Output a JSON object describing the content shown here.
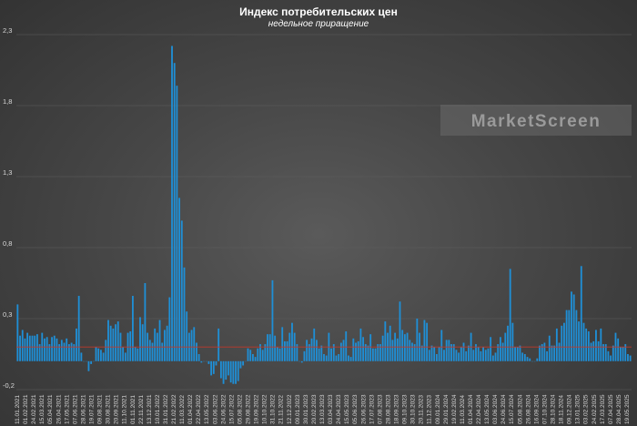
{
  "chart_data": {
    "type": "bar",
    "title": "Индекс потребительских цен",
    "subtitle": "недельное приращение",
    "watermark": "MarketScreen",
    "ylim": [
      -0.2,
      2.3
    ],
    "yticks": [
      "-0,2",
      "0,3",
      "0,8",
      "1,3",
      "1,8",
      "2,3"
    ],
    "ytick_values": [
      -0.2,
      0.3,
      0.8,
      1.3,
      1.8,
      2.3
    ],
    "grid": true,
    "bar_color": "#1f8fd6",
    "average_line": {
      "value": 0.1,
      "color": "#c0392b"
    },
    "xtick_labels": [
      "11.01.2021",
      "01.02.2021",
      "24.02.2021",
      "15.03.2021",
      "05.04.2021",
      "26.04.2021",
      "17.05.2021",
      "07.06.2021",
      "28.06.2021",
      "19.07.2021",
      "09.08.2021",
      "30.08.2021",
      "20.09.2021",
      "11.10.2021",
      "01.11.2021",
      "22.11.2021",
      "13.12.2021",
      "10.01.2022",
      "31.01.2022",
      "21.02.2022",
      "11.03.2022",
      "01.04.2022",
      "22.04.2022",
      "13.05.2022",
      "03.06.2022",
      "24.06.2022",
      "15.07.2022",
      "05.08.2022",
      "29.08.2022",
      "19.09.2022",
      "10.10.2022",
      "31.10.2022",
      "21.11.2022",
      "12.12.2022",
      "09.01.2023",
      "30.01.2023",
      "20.02.2023",
      "13.03.2023",
      "03.04.2023",
      "24.04.2023",
      "15.05.2023",
      "05.06.2023",
      "26.06.2023",
      "17.07.2023",
      "07.08.2023",
      "28.08.2023",
      "18.09.2023",
      "09.10.2023",
      "30.10.2023",
      "20.11.2023",
      "11.12.2023",
      "09.01.2024",
      "29.01.2024",
      "19.02.2024",
      "11.03.2024",
      "01.04.2024",
      "22.04.2024",
      "13.05.2024",
      "03.06.2024",
      "24.06.2024",
      "15.07.2024",
      "05.08.2024",
      "26.08.2024",
      "16.09.2024",
      "07.10.2024",
      "28.10.2024",
      "18.11.2024",
      "09.12.2024",
      "13.01.2025",
      "03.02.2025",
      "24.02.2025",
      "17.03.2025",
      "07.04.2025",
      "28.04.2025",
      "19.05.2025"
    ],
    "values": [
      0.4,
      0.18,
      0.22,
      0.16,
      0.2,
      0.18,
      0.18,
      0.18,
      0.19,
      0.12,
      0.2,
      0.16,
      0.17,
      0.12,
      0.17,
      0.18,
      0.16,
      0.12,
      0.15,
      0.13,
      0.16,
      0.12,
      0.13,
      0.12,
      0.23,
      0.46,
      0.06,
      0.0,
      0.0,
      -0.07,
      -0.02,
      0.0,
      0.1,
      0.09,
      0.08,
      0.06,
      0.15,
      0.29,
      0.25,
      0.23,
      0.26,
      0.28,
      0.2,
      0.1,
      0.06,
      0.2,
      0.21,
      0.46,
      0.1,
      0.09,
      0.31,
      0.26,
      0.55,
      0.2,
      0.15,
      0.13,
      0.23,
      0.2,
      0.29,
      0.13,
      0.22,
      0.25,
      0.45,
      2.22,
      2.1,
      1.94,
      1.15,
      0.99,
      0.66,
      0.35,
      0.2,
      0.22,
      0.24,
      0.13,
      0.05,
      -0.01,
      0.0,
      0.0,
      -0.02,
      -0.1,
      -0.09,
      -0.03,
      0.23,
      -0.12,
      -0.16,
      -0.13,
      -0.1,
      -0.15,
      -0.16,
      -0.16,
      -0.14,
      -0.05,
      -0.03,
      0.0,
      0.09,
      0.08,
      0.05,
      0.03,
      0.09,
      0.12,
      0.08,
      0.12,
      0.19,
      0.19,
      0.57,
      0.18,
      0.1,
      0.09,
      0.24,
      0.14,
      0.14,
      0.2,
      0.27,
      0.2,
      0.12,
      0.0,
      -0.01,
      0.07,
      0.15,
      0.12,
      0.16,
      0.23,
      0.15,
      0.09,
      0.11,
      0.05,
      0.04,
      0.2,
      0.09,
      0.12,
      0.04,
      0.05,
      0.13,
      0.15,
      0.21,
      0.04,
      0.03,
      0.16,
      0.13,
      0.14,
      0.23,
      0.17,
      0.12,
      0.11,
      0.19,
      0.09,
      0.09,
      0.12,
      0.12,
      0.18,
      0.28,
      0.2,
      0.25,
      0.15,
      0.2,
      0.16,
      0.42,
      0.22,
      0.19,
      0.2,
      0.15,
      0.13,
      0.12,
      0.3,
      0.2,
      0.11,
      0.29,
      0.27,
      0.08,
      0.11,
      0.1,
      0.05,
      0.1,
      0.22,
      0.08,
      0.15,
      0.15,
      0.12,
      0.12,
      0.08,
      0.06,
      0.1,
      0.13,
      0.07,
      0.11,
      0.2,
      0.08,
      0.12,
      0.1,
      0.07,
      0.1,
      0.08,
      0.09,
      0.17,
      0.04,
      0.06,
      0.12,
      0.17,
      0.13,
      0.2,
      0.25,
      0.65,
      0.27,
      0.1,
      0.1,
      0.11,
      0.06,
      0.05,
      0.03,
      0.02,
      0.0,
      0.0,
      0.02,
      0.11,
      0.12,
      0.13,
      0.07,
      0.18,
      0.11,
      0.11,
      0.23,
      0.13,
      0.25,
      0.27,
      0.36,
      0.36,
      0.49,
      0.47,
      0.36,
      0.28,
      0.67,
      0.27,
      0.23,
      0.21,
      0.13,
      0.14,
      0.22,
      0.14,
      0.23,
      0.12,
      0.12,
      0.07,
      0.04,
      0.11,
      0.2,
      0.16,
      0.1,
      0.1,
      0.12,
      0.05,
      0.04
    ]
  }
}
